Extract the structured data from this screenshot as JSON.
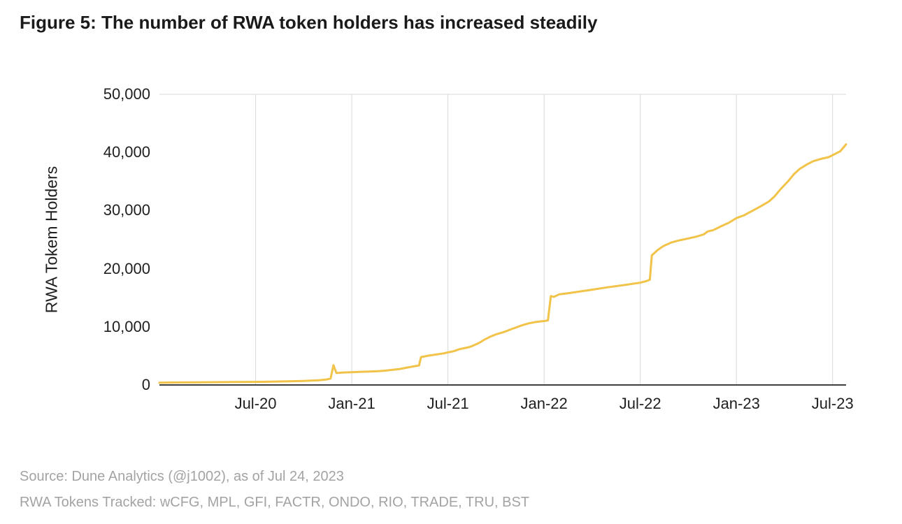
{
  "footer": {
    "source": "Source: Dune Analytics (@j1002), as of Jul 24, 2023",
    "tokens_tracked": "RWA Tokens Tracked: wCFG, MPL, GFI, FACTR, ONDO, RIO, TRADE, TRU, BST"
  },
  "colors": {
    "line": "#F2C349",
    "grid": "#D9D9D9",
    "axis": "#3F3F3F",
    "title_text": "#1A1A1A",
    "tick_text": "#1F1F1F",
    "footer_text": "#A3A3A3"
  },
  "chart_data": {
    "type": "line",
    "title": "Figure 5: The number of RWA token holders has increased steadily",
    "xlabel": "",
    "ylabel": "RWA Tokem Holders",
    "xlim": [
      2020.0,
      2023.57
    ],
    "ylim": [
      0,
      50000
    ],
    "grid": {
      "vertical": true,
      "horizontal": false,
      "top_border": true
    },
    "legend": "none",
    "xticks": [
      {
        "value": 2020.5,
        "label": "Jul-20"
      },
      {
        "value": 2021.0,
        "label": "Jan-21"
      },
      {
        "value": 2021.5,
        "label": "Jul-21"
      },
      {
        "value": 2022.0,
        "label": "Jan-22"
      },
      {
        "value": 2022.5,
        "label": "Jul-22"
      },
      {
        "value": 2023.0,
        "label": "Jan-23"
      },
      {
        "value": 2023.5,
        "label": "Jul-23"
      }
    ],
    "yticks": [
      {
        "value": 0,
        "label": "0"
      },
      {
        "value": 10000,
        "label": "10,000"
      },
      {
        "value": 20000,
        "label": "20,000"
      },
      {
        "value": 30000,
        "label": "30,000"
      },
      {
        "value": 40000,
        "label": "40,000"
      },
      {
        "value": 50000,
        "label": "50,000"
      }
    ],
    "series": [
      {
        "name": "RWA token holders",
        "color": "#F2C349",
        "points": [
          [
            2020.0,
            400
          ],
          [
            2020.1,
            430
          ],
          [
            2020.2,
            460
          ],
          [
            2020.3,
            480
          ],
          [
            2020.4,
            500
          ],
          [
            2020.5,
            530
          ],
          [
            2020.58,
            570
          ],
          [
            2020.67,
            630
          ],
          [
            2020.75,
            700
          ],
          [
            2020.83,
            820
          ],
          [
            2020.87,
            950
          ],
          [
            2020.89,
            1100
          ],
          [
            2020.905,
            3400
          ],
          [
            2020.92,
            2050
          ],
          [
            2020.96,
            2150
          ],
          [
            2021.0,
            2200
          ],
          [
            2021.04,
            2250
          ],
          [
            2021.08,
            2300
          ],
          [
            2021.13,
            2350
          ],
          [
            2021.17,
            2450
          ],
          [
            2021.21,
            2600
          ],
          [
            2021.25,
            2750
          ],
          [
            2021.29,
            3000
          ],
          [
            2021.33,
            3250
          ],
          [
            2021.35,
            3350
          ],
          [
            2021.36,
            4800
          ],
          [
            2021.4,
            5050
          ],
          [
            2021.44,
            5250
          ],
          [
            2021.48,
            5450
          ],
          [
            2021.5,
            5600
          ],
          [
            2021.53,
            5800
          ],
          [
            2021.56,
            6150
          ],
          [
            2021.58,
            6300
          ],
          [
            2021.61,
            6500
          ],
          [
            2021.63,
            6750
          ],
          [
            2021.66,
            7200
          ],
          [
            2021.69,
            7800
          ],
          [
            2021.72,
            8300
          ],
          [
            2021.75,
            8700
          ],
          [
            2021.79,
            9100
          ],
          [
            2021.83,
            9600
          ],
          [
            2021.88,
            10200
          ],
          [
            2021.92,
            10600
          ],
          [
            2021.96,
            10850
          ],
          [
            2022.0,
            11000
          ],
          [
            2022.02,
            11100
          ],
          [
            2022.035,
            15300
          ],
          [
            2022.05,
            15150
          ],
          [
            2022.08,
            15600
          ],
          [
            2022.13,
            15800
          ],
          [
            2022.17,
            16000
          ],
          [
            2022.25,
            16400
          ],
          [
            2022.33,
            16800
          ],
          [
            2022.42,
            17200
          ],
          [
            2022.46,
            17400
          ],
          [
            2022.5,
            17600
          ],
          [
            2022.53,
            17850
          ],
          [
            2022.55,
            18100
          ],
          [
            2022.56,
            22300
          ],
          [
            2022.59,
            23200
          ],
          [
            2022.62,
            23900
          ],
          [
            2022.66,
            24500
          ],
          [
            2022.7,
            24850
          ],
          [
            2022.75,
            25200
          ],
          [
            2022.79,
            25500
          ],
          [
            2022.83,
            25900
          ],
          [
            2022.85,
            26400
          ],
          [
            2022.88,
            26650
          ],
          [
            2022.92,
            27300
          ],
          [
            2022.96,
            27900
          ],
          [
            2023.0,
            28700
          ],
          [
            2023.04,
            29200
          ],
          [
            2023.08,
            29900
          ],
          [
            2023.13,
            30800
          ],
          [
            2023.17,
            31600
          ],
          [
            2023.2,
            32500
          ],
          [
            2023.23,
            33700
          ],
          [
            2023.27,
            35100
          ],
          [
            2023.3,
            36300
          ],
          [
            2023.33,
            37200
          ],
          [
            2023.37,
            38000
          ],
          [
            2023.4,
            38500
          ],
          [
            2023.44,
            38900
          ],
          [
            2023.48,
            39200
          ],
          [
            2023.51,
            39700
          ],
          [
            2023.54,
            40200
          ],
          [
            2023.57,
            41400
          ]
        ]
      }
    ]
  }
}
